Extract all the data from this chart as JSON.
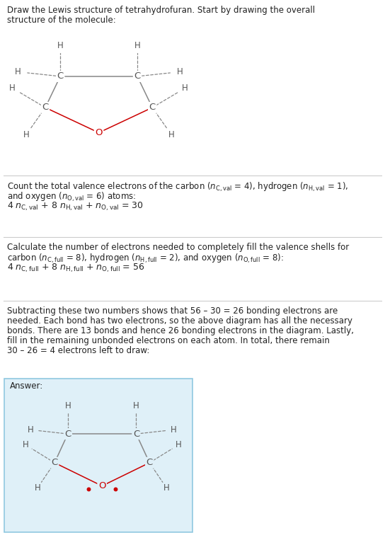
{
  "bg_color": "#ffffff",
  "answer_bg_color": "#dff0f8",
  "answer_border_color": "#90c8e0",
  "bond_color": "#888888",
  "O_color": "#cc0000",
  "C_color": "#555555",
  "H_color": "#555555",
  "font_size_body": 8.5,
  "font_size_math": 9.0,
  "font_size_atom": 9.5,
  "font_size_H": 8.5,
  "title": "Draw the Lewis structure of tetrahydrofuran. Start by drawing the overall\nstructure of the molecule:",
  "s1_line1": "Count the total valence electrons of the carbon (",
  "s1_line1b": " = 4), hydrogen (",
  "s1_line1c": " = 1),",
  "s1_line2": "and oxygen (",
  "s1_line2b": " = 6) atoms:",
  "s1_eq": "4 ",
  "s1_eq2": " + 8 ",
  "s1_eq3": " + ",
  "s1_eq4": " = 30",
  "s2_line1": "Calculate the number of electrons needed to completely fill the valence shells for",
  "s2_line2a": "carbon (",
  "s2_line2b": " = 8), hydrogen (",
  "s2_line2c": " = 2), and oxygen (",
  "s2_line2d": " = 8):",
  "s2_eq": "4 ",
  "s2_eq2": " + 8 ",
  "s2_eq3": " + ",
  "s2_eq4": " = 56",
  "s3_text": "Subtracting these two numbers shows that 56 – 30 = 26 bonding electrons are\nneeded. Each bond has two electrons, so the above diagram has all the necessary\nbonds. There are 13 bonds and hence 26 bonding electrons in the diagram. Lastly,\nfill in the remaining unbonded electrons on each atom. In total, there remain\n30 – 26 = 4 electrons left to draw:",
  "answer_label": "Answer:"
}
